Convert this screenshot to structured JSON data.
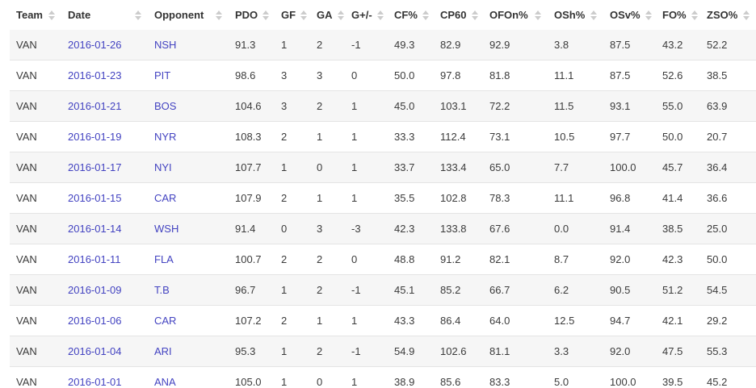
{
  "colors": {
    "link": "#4343c1",
    "row_stripe": "#f6f6f6",
    "row_border": "#e4e4e4",
    "header_text": "#333333",
    "body_text": "#3b3b3b",
    "sort_icon": "#cccccc"
  },
  "table": {
    "columns": [
      {
        "key": "team",
        "label": "Team"
      },
      {
        "key": "date",
        "label": "Date"
      },
      {
        "key": "opponent",
        "label": "Opponent"
      },
      {
        "key": "pdo",
        "label": "PDO"
      },
      {
        "key": "gf",
        "label": "GF"
      },
      {
        "key": "ga",
        "label": "GA"
      },
      {
        "key": "gdiff",
        "label": "G+/-"
      },
      {
        "key": "cfpct",
        "label": "CF%"
      },
      {
        "key": "cp60",
        "label": "CP60"
      },
      {
        "key": "ofonpct",
        "label": "OFOn%"
      },
      {
        "key": "oshpct",
        "label": "OSh%"
      },
      {
        "key": "osvpct",
        "label": "OSv%"
      },
      {
        "key": "fopct",
        "label": "FO%"
      },
      {
        "key": "zsopct",
        "label": "ZSO%"
      }
    ],
    "link_columns": [
      "date",
      "opponent"
    ],
    "rows": [
      [
        "VAN",
        "2016-01-26",
        "NSH",
        "91.3",
        "1",
        "2",
        "-1",
        "49.3",
        "82.9",
        "92.9",
        "3.8",
        "87.5",
        "43.2",
        "52.2"
      ],
      [
        "VAN",
        "2016-01-23",
        "PIT",
        "98.6",
        "3",
        "3",
        "0",
        "50.0",
        "97.8",
        "81.8",
        "11.1",
        "87.5",
        "52.6",
        "38.5"
      ],
      [
        "VAN",
        "2016-01-21",
        "BOS",
        "104.6",
        "3",
        "2",
        "1",
        "45.0",
        "103.1",
        "72.2",
        "11.5",
        "93.1",
        "55.0",
        "63.9"
      ],
      [
        "VAN",
        "2016-01-19",
        "NYR",
        "108.3",
        "2",
        "1",
        "1",
        "33.3",
        "112.4",
        "73.1",
        "10.5",
        "97.7",
        "50.0",
        "20.7"
      ],
      [
        "VAN",
        "2016-01-17",
        "NYI",
        "107.7",
        "1",
        "0",
        "1",
        "33.7",
        "133.4",
        "65.0",
        "7.7",
        "100.0",
        "45.7",
        "36.4"
      ],
      [
        "VAN",
        "2016-01-15",
        "CAR",
        "107.9",
        "2",
        "1",
        "1",
        "35.5",
        "102.8",
        "78.3",
        "11.1",
        "96.8",
        "41.4",
        "36.6"
      ],
      [
        "VAN",
        "2016-01-14",
        "WSH",
        "91.4",
        "0",
        "3",
        "-3",
        "42.3",
        "133.8",
        "67.6",
        "0.0",
        "91.4",
        "38.5",
        "25.0"
      ],
      [
        "VAN",
        "2016-01-11",
        "FLA",
        "100.7",
        "2",
        "2",
        "0",
        "48.8",
        "91.2",
        "82.1",
        "8.7",
        "92.0",
        "42.3",
        "50.0"
      ],
      [
        "VAN",
        "2016-01-09",
        "T.B",
        "96.7",
        "1",
        "2",
        "-1",
        "45.1",
        "85.2",
        "66.7",
        "6.2",
        "90.5",
        "51.2",
        "54.5"
      ],
      [
        "VAN",
        "2016-01-06",
        "CAR",
        "107.2",
        "2",
        "1",
        "1",
        "43.3",
        "86.4",
        "64.0",
        "12.5",
        "94.7",
        "42.1",
        "29.2"
      ],
      [
        "VAN",
        "2016-01-04",
        "ARI",
        "95.3",
        "1",
        "2",
        "-1",
        "54.9",
        "102.6",
        "81.1",
        "3.3",
        "92.0",
        "47.5",
        "55.3"
      ],
      [
        "VAN",
        "2016-01-01",
        "ANA",
        "105.0",
        "1",
        "0",
        "1",
        "38.9",
        "85.6",
        "83.3",
        "5.0",
        "100.0",
        "39.5",
        "45.2"
      ]
    ]
  }
}
